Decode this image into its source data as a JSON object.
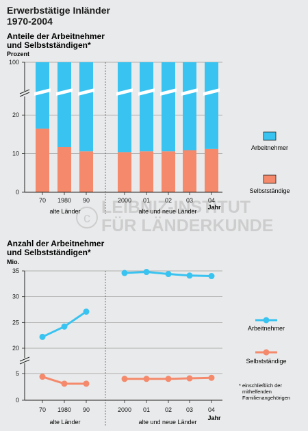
{
  "page": {
    "title_line1": "Erwerbstätige Inländer",
    "title_line2": "1970-2004"
  },
  "colors": {
    "employee": "#39c3f0",
    "selfemployed": "#f4896b",
    "background": "#e9eaeb",
    "axis": "#222222"
  },
  "watermark": {
    "line1": "LEIBNIZ-INSTITUT",
    "line2": "FÜR LÄNDERKUNDE"
  },
  "chart_data": [
    {
      "type": "bar",
      "stacked": true,
      "title_line1": "Anteile der Arbeitnehmer",
      "title_line2": "und Selbstständigen*",
      "ylabel": "Prozent",
      "xlabel": "Jahr",
      "axis_break": [
        25,
        95
      ],
      "yticks": [
        "0",
        "10",
        "20",
        "100"
      ],
      "categories": [
        "70",
        "1980",
        "90",
        "2000",
        "01",
        "02",
        "03",
        "04"
      ],
      "group_labels": [
        "alte Länder",
        "alte und neue Länder"
      ],
      "series": [
        {
          "name": "Selbstständige",
          "values": [
            16.5,
            11.7,
            10.6,
            10.4,
            10.6,
            10.6,
            10.9,
            11.2
          ]
        },
        {
          "name": "Arbeitnehmer",
          "values": [
            83.5,
            88.3,
            89.4,
            89.6,
            89.4,
            89.4,
            89.1,
            88.8
          ]
        }
      ],
      "legend": [
        "Arbeitnehmer",
        "Selbstständige"
      ],
      "legend_position": "right"
    },
    {
      "type": "line",
      "title_line1": "Anzahl der Arbeitnehmer",
      "title_line2": "und Selbstständigen*",
      "ylabel": "Mio.",
      "xlabel": "Jahr",
      "axis_break": [
        7,
        18
      ],
      "yticks": [
        "0",
        "5",
        "20",
        "25",
        "30",
        "35"
      ],
      "categories": [
        "70",
        "1980",
        "90",
        "2000",
        "01",
        "02",
        "03",
        "04"
      ],
      "group_labels": [
        "alte Länder",
        "alte und neue Länder"
      ],
      "series": [
        {
          "name": "Arbeitnehmer",
          "segments": [
            [
              22.2,
              24.2,
              27.1
            ],
            [
              34.6,
              34.8,
              34.4,
              34.1,
              34.0
            ]
          ]
        },
        {
          "name": "Selbstständige",
          "segments": [
            [
              4.4,
              3.1,
              3.1
            ],
            [
              4.0,
              4.0,
              4.0,
              4.1,
              4.2
            ]
          ]
        }
      ],
      "legend": [
        "Arbeitnehmer",
        "Selbstständige"
      ],
      "legend_position": "right"
    }
  ],
  "footnote": {
    "line1": "* einschließlich der",
    "line2": "mithelfenden",
    "line3": "Familienangehörigen"
  }
}
